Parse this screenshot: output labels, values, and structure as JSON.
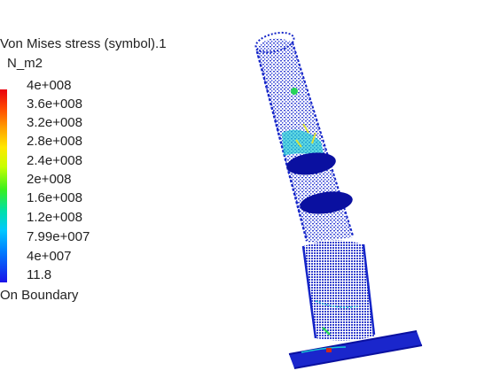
{
  "legend": {
    "title": "Von Mises stress (symbol).1",
    "unit": "N_m2",
    "ticks": [
      "4e+008",
      "3.6e+008",
      "3.2e+008",
      "2.8e+008",
      "2.4e+008",
      "2e+008",
      "1.6e+008",
      "1.2e+008",
      "7.99e+007",
      "4e+007",
      "11.8"
    ],
    "footer": "On Boundary"
  },
  "colors": {
    "mesh_blue": "#1525c8",
    "mesh_dark": "#0a10a0",
    "hot_cyan": "#19c7d4",
    "hot_green": "#27d45a",
    "hot_yellow": "#d8e03a",
    "hot_red": "#d22a1a"
  }
}
